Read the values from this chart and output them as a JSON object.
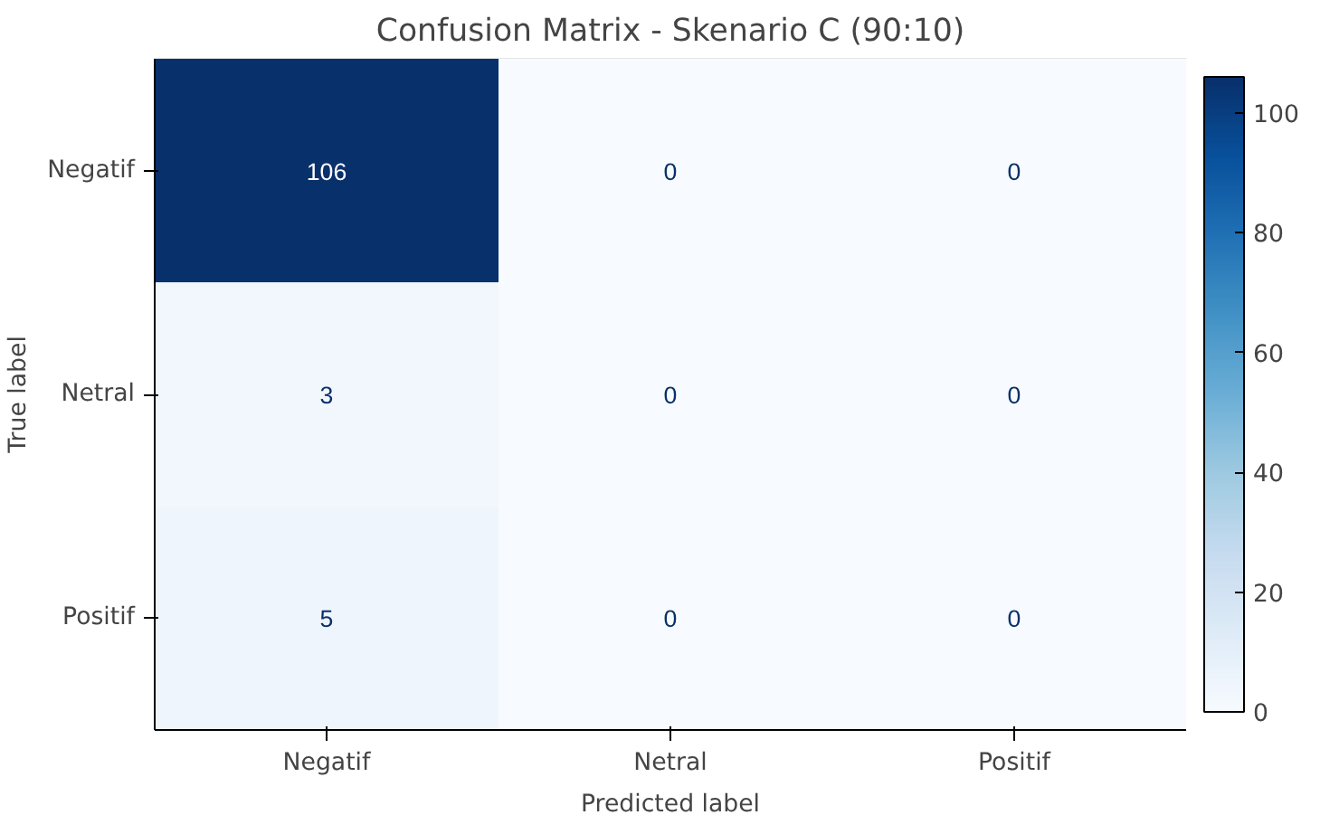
{
  "chart_data": {
    "type": "heatmap",
    "title": "Confusion Matrix - Skenario C (90:10)",
    "xlabel": "Predicted label",
    "ylabel": "True label",
    "categories": [
      "Negatif",
      "Netral",
      "Positif"
    ],
    "y_categories": [
      "Negatif",
      "Netral",
      "Positif"
    ],
    "cells": [
      [
        106,
        0,
        0
      ],
      [
        3,
        0,
        0
      ],
      [
        5,
        0,
        0
      ]
    ],
    "clim": [
      0,
      106
    ],
    "cticks": [
      0,
      20,
      40,
      60,
      80,
      100
    ],
    "data_labels": true
  }
}
